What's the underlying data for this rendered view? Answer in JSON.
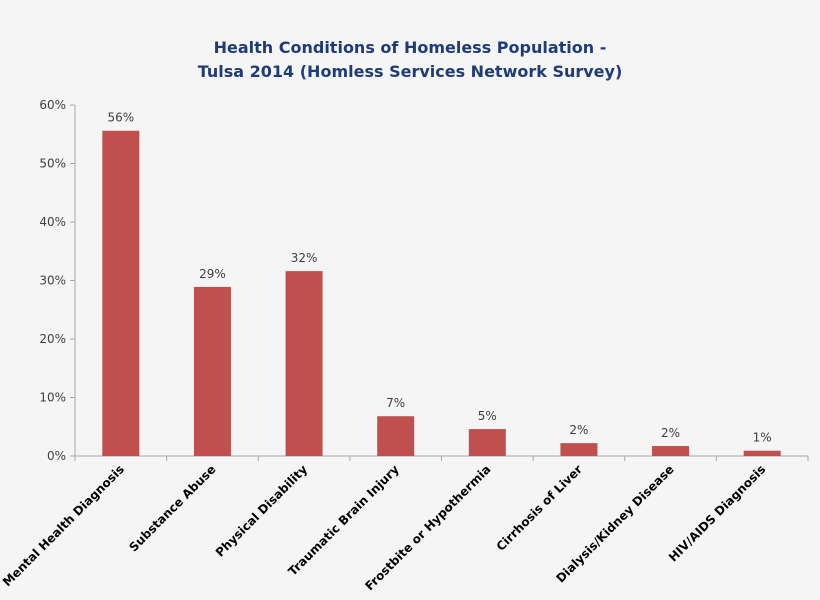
{
  "chart_data": {
    "type": "bar",
    "title": [
      "Health Conditions of Homeless Population -",
      "Tulsa 2014 (Homless Services Network Survey)"
    ],
    "xlabel": "",
    "ylabel": "",
    "categories": [
      "Mental Health Diagnosis",
      "Substance Abuse",
      "Physical Disability",
      "Traumatic Brain Injury",
      "Frostbite or Hypothermia",
      "Cirrhosis of Liver",
      "Dialysis/Kidney Disease",
      "HIV/AIDS Diagnosis"
    ],
    "values": [
      55.6,
      28.9,
      31.6,
      6.8,
      4.6,
      2.2,
      1.7,
      0.9
    ],
    "data_labels": [
      "56%",
      "29%",
      "32%",
      "7%",
      "5%",
      "2%",
      "2%",
      "1%"
    ],
    "ylim": [
      0,
      60
    ],
    "yticks": [
      0,
      10,
      20,
      30,
      40,
      50,
      60
    ],
    "ytick_labels": [
      "0%",
      "10%",
      "20%",
      "30%",
      "40%",
      "50%",
      "60%"
    ],
    "grid": false,
    "legend": "none",
    "colors": {
      "bar": "#c0504d",
      "title": "#1f3c79",
      "background": "#f5f5f5",
      "axis": "#a6a6a6"
    }
  }
}
